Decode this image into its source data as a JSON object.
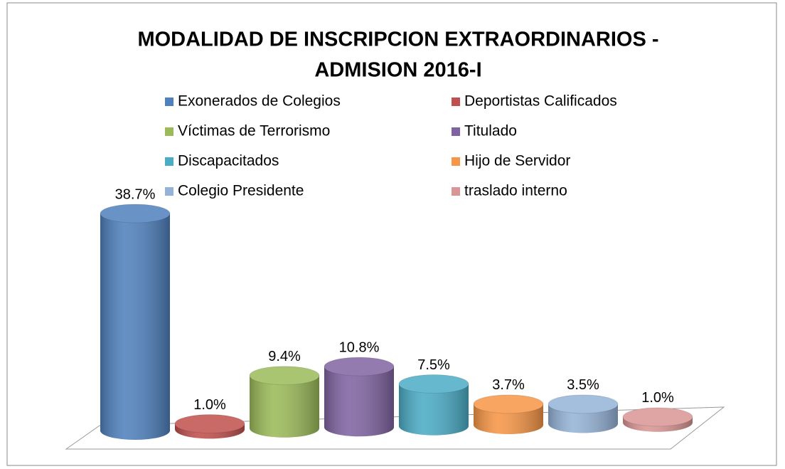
{
  "chart_data": {
    "type": "bar3d",
    "title": "MODALIDAD DE INSCRIPCION EXTRAORDINARIOS -",
    "subtitle": "ADMISION 2016-I",
    "series": [
      {
        "name": "Exonerados de Colegios",
        "color": "#4f81bd",
        "values": [
          38.7
        ],
        "value_labels": [
          "38.7%"
        ]
      },
      {
        "name": "Deportistas Calificados",
        "color": "#c0504d",
        "values": [
          1.0
        ],
        "value_labels": [
          "1.0%"
        ]
      },
      {
        "name": "Víctimas de Terrorismo",
        "color": "#9bbb59",
        "values": [
          9.4
        ],
        "value_labels": [
          "9.4%"
        ]
      },
      {
        "name": "Titulado",
        "color": "#8064a2",
        "values": [
          10.8
        ],
        "value_labels": [
          "10.8%"
        ]
      },
      {
        "name": "Discapacitados",
        "color": "#4bacc6",
        "values": [
          7.5
        ],
        "value_labels": [
          "7.5%"
        ]
      },
      {
        "name": "Hijo de Servidor",
        "color": "#f79646",
        "values": [
          3.7
        ],
        "value_labels": [
          "3.7%"
        ]
      },
      {
        "name": "Colegio Presidente",
        "color": "#95b3d7",
        "values": [
          3.5
        ],
        "value_labels": [
          "3.5%"
        ]
      },
      {
        "name": "traslado interno",
        "color": "#d99694",
        "values": [
          1.0
        ],
        "value_labels": [
          "1.0%"
        ]
      }
    ]
  }
}
